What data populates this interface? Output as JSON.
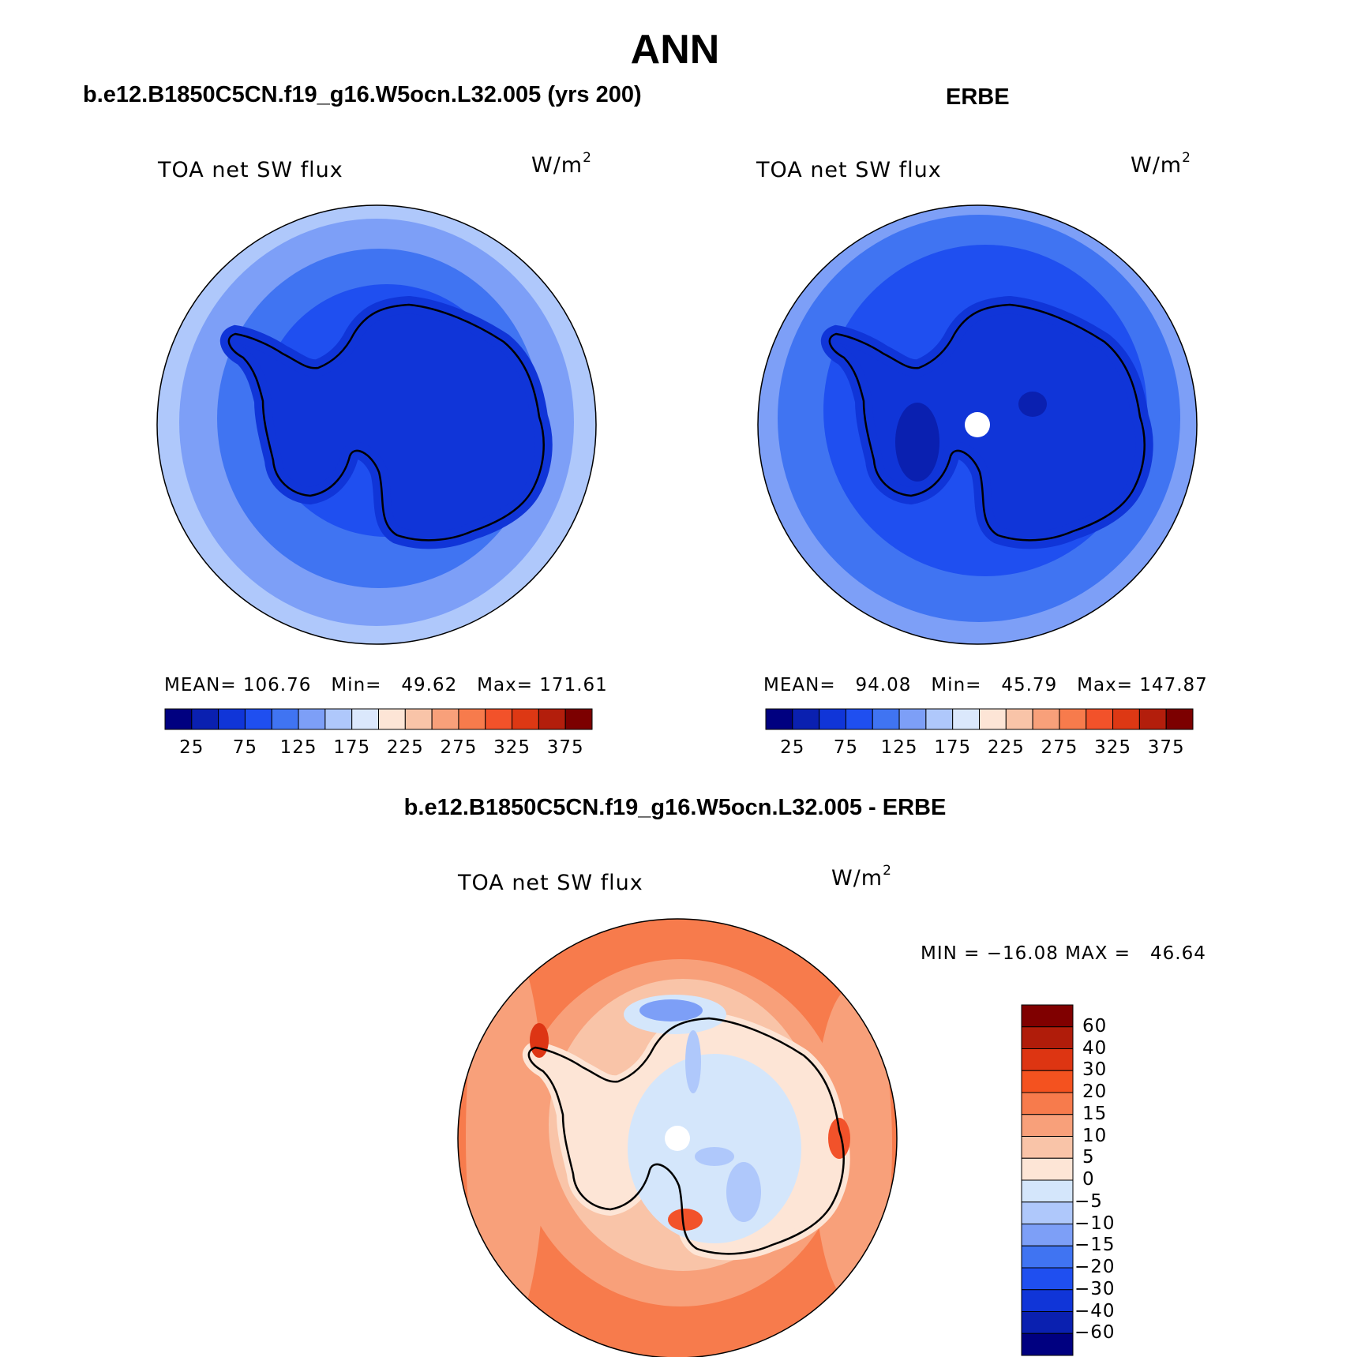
{
  "figure": {
    "season": "ANN",
    "panels": [
      {
        "title": "b.e12.B1850C5CN.f19_g16.W5ocn.L32.005 (yrs 200)",
        "variable": "TOA net SW flux",
        "units": "W/m",
        "units_exponent": "2",
        "mean_label": "MEAN=",
        "mean": "106.76",
        "min_label": "Min=",
        "min": "49.62",
        "max_label": "Max=",
        "max": "171.61"
      },
      {
        "title": "ERBE",
        "variable": "TOA net SW flux",
        "units": "W/m",
        "units_exponent": "2",
        "mean_label": "MEAN=",
        "mean": "94.08",
        "min_label": "Min=",
        "min": "45.79",
        "max_label": "Max=",
        "max": "147.87"
      },
      {
        "title": "b.e12.B1850C5CN.f19_g16.W5ocn.L32.005 - ERBE",
        "variable": "TOA net SW flux",
        "units": "W/m",
        "units_exponent": "2",
        "minmax_text": "MIN = −16.08 MAX =   46.64"
      }
    ],
    "abs_colorbar": {
      "tick_labels": [
        "25",
        "75",
        "125",
        "175",
        "225",
        "275",
        "325",
        "375"
      ],
      "colors": [
        "#000080",
        "#0a20b0",
        "#1035d8",
        "#1f4ff0",
        "#4074f2",
        "#7d9ff7",
        "#afc8fb",
        "#dbe8fc",
        "#fde5d6",
        "#f9c4a8",
        "#f8a07a",
        "#f77b4c",
        "#f2522a",
        "#dd3814",
        "#b31e0c",
        "#7c0000"
      ]
    },
    "diff_colorbar": {
      "tick_labels": [
        "60",
        "40",
        "30",
        "20",
        "15",
        "10",
        "5",
        "0",
        "−5",
        "−10",
        "−15",
        "−20",
        "−30",
        "−40",
        "−60"
      ],
      "colors": [
        "#800000",
        "#b01c0a",
        "#dd3512",
        "#f4521f",
        "#f77b4c",
        "#f8a07a",
        "#f9c4a8",
        "#fde5d6",
        "#d4e6fb",
        "#afc8fb",
        "#7d9ff7",
        "#4074f2",
        "#1f4ff0",
        "#1035d8",
        "#0a20b0",
        "#000080"
      ]
    }
  }
}
